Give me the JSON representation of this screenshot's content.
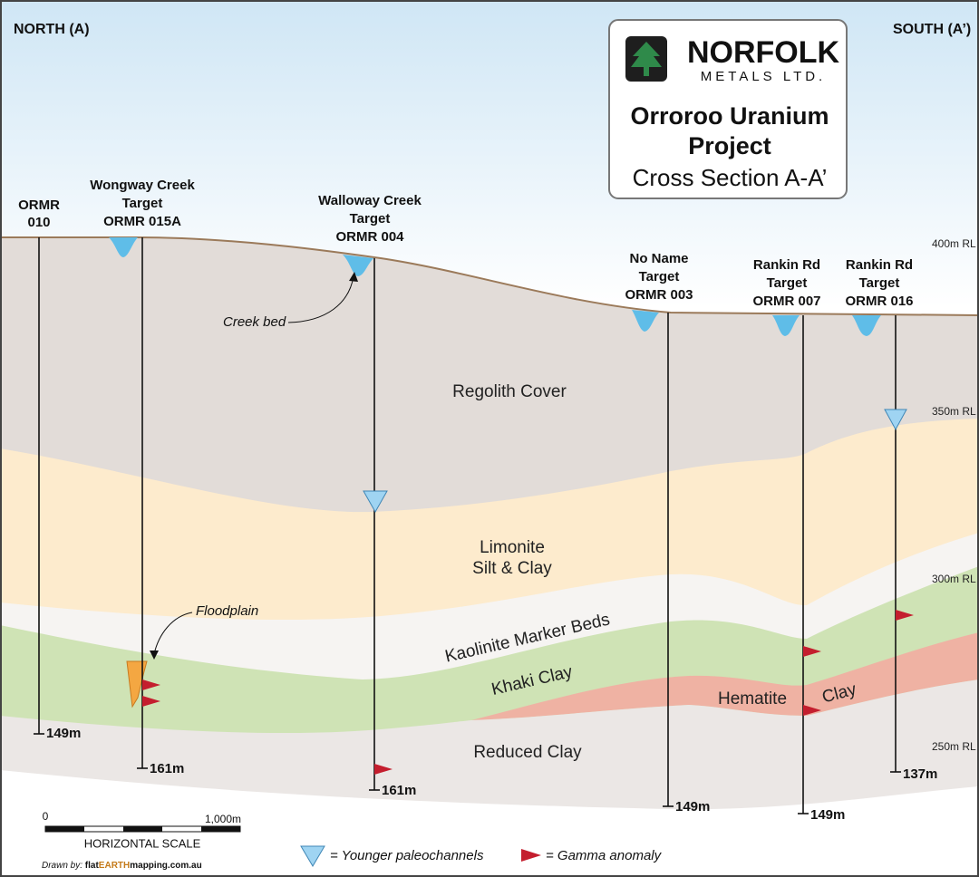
{
  "header": {
    "left": "NORTH (A)",
    "right": "SOUTH (A’)"
  },
  "logo": {
    "company": "NORFOLK",
    "company_sub": "METALS LTD.",
    "project_lines": [
      "Orroroo Uranium",
      "Project"
    ],
    "subtitle": "Cross Section A-A’"
  },
  "elevations": [
    "400m RL",
    "350m RL",
    "300m RL",
    "250m RL"
  ],
  "holes": [
    {
      "label_lines": [
        "ORMR",
        "010"
      ],
      "depth": "149m"
    },
    {
      "label_lines": [
        "Wongway Creek",
        "Target",
        "ORMR 015A"
      ],
      "depth": "161m"
    },
    {
      "label_lines": [
        "Walloway Creek",
        "Target",
        "ORMR 004"
      ],
      "depth": "161m"
    },
    {
      "label_lines": [
        "No Name",
        "Target",
        "ORMR 003"
      ],
      "depth": "149m"
    },
    {
      "label_lines": [
        "Rankin Rd",
        "Target",
        "ORMR 007"
      ],
      "depth": "149m"
    },
    {
      "label_lines": [
        "Rankin Rd",
        "Target",
        "ORMR 016"
      ],
      "depth": "137m"
    }
  ],
  "layers": {
    "regolith": "Regolith Cover",
    "limonite_lines": [
      "Limonite",
      "Silt & Clay"
    ],
    "kaolinite": "Kaolinite Marker Beds",
    "khaki": "Khaki Clay",
    "hematite_parts": [
      "Hematite",
      "Clay"
    ],
    "reduced": "Reduced Clay"
  },
  "annotations": {
    "creek_bed": "Creek bed",
    "floodplain": "Floodplain"
  },
  "scale": {
    "start": "0",
    "end": "1,000m",
    "title": "HORIZONTAL SCALE"
  },
  "credit": {
    "prefix": "Drawn by:",
    "parts": [
      "flat",
      "EARTH",
      "mapping.com.au"
    ]
  },
  "legend": {
    "paleochannel": "= Younger paleochannels",
    "gamma": "= Gamma anomaly"
  }
}
